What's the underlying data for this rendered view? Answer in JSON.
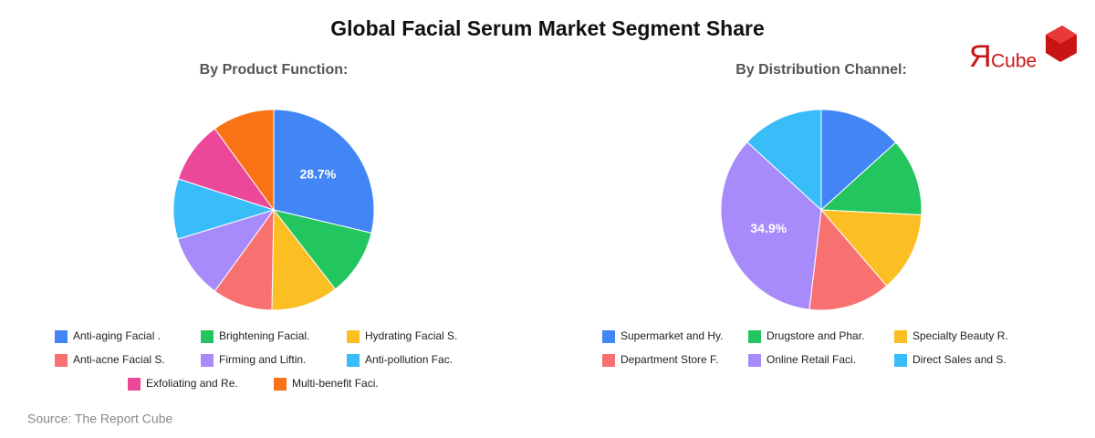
{
  "title": "Global Facial Serum Market Segment Share",
  "source": "Source: The Report Cube",
  "logo": {
    "mark": "Я",
    "text": "Cube"
  },
  "chart_data": [
    {
      "type": "pie",
      "title": "By Product Function:",
      "categories": [
        "Anti-aging Facial .",
        "Brightening Facial.",
        "Hydrating Facial S.",
        "Anti-acne Facial S.",
        "Firming and Liftin.",
        "Anti-pollution Fac.",
        "Exfoliating and Re.",
        "Multi-benefit Faci."
      ],
      "values": [
        28.7,
        10.8,
        10.8,
        9.7,
        10.3,
        9.7,
        10,
        10
      ],
      "value_labels": [
        "28.7%",
        null,
        null,
        null,
        null,
        null,
        null,
        null
      ],
      "colors": [
        "#4285f4",
        "#22c55e",
        "#fbbf24",
        "#f87171",
        "#a78bfa",
        "#38bdf8",
        "#ec4899",
        "#f97316"
      ]
    },
    {
      "type": "pie",
      "title": "By Distribution Channel:",
      "categories": [
        "Supermarket and Hy.",
        "Drugstore and Phar.",
        "Specialty Beauty R.",
        "Department Store F.",
        "Online Retail Faci.",
        "Direct Sales and S."
      ],
      "values": [
        13.3,
        12.5,
        12.9,
        13.2,
        34.9,
        13.2
      ],
      "value_labels": [
        null,
        null,
        null,
        null,
        "34.9%",
        null
      ],
      "colors": [
        "#4285f4",
        "#22c55e",
        "#fbbf24",
        "#f87171",
        "#a78bfa",
        "#38bdf8"
      ]
    }
  ]
}
